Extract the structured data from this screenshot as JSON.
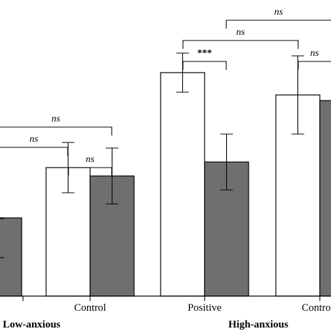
{
  "chart_data": {
    "type": "bar",
    "groups": [
      "Low-anxious",
      "High-anxious"
    ],
    "categories": [
      {
        "label": "",
        "group": "Low-anxious"
      },
      {
        "label": "Control",
        "group": "Low-anxious"
      },
      {
        "label": "Positive",
        "group": "High-anxious"
      },
      {
        "label": "Control",
        "group": "High-anxious"
      }
    ],
    "series": [
      {
        "color": "#ffffff",
        "values": [
          null,
          0.46,
          0.8,
          0.72
        ],
        "error": [
          null,
          0.09,
          0.07,
          0.14
        ]
      },
      {
        "color": "#6f6f6f",
        "values": [
          0.28,
          0.43,
          0.48,
          0.7
        ],
        "error": [
          null,
          0.1,
          0.1,
          null
        ]
      }
    ],
    "ylim": [
      0,
      1
    ],
    "grid": false,
    "legend": "none",
    "significance": [
      {
        "label": "ns",
        "from": "Low-anxious Control, white bar",
        "to": "Low-anxious Control, gray bar"
      },
      {
        "label": "ns",
        "from": "Low-anxious first condition",
        "to": "Low-anxious Control, white bar"
      },
      {
        "label": "ns",
        "from": "Low-anxious first condition",
        "to": "Low-anxious Control, gray bar"
      },
      {
        "label": "***",
        "from": "High-anxious Positive, white bar",
        "to": "High-anxious Positive, gray bar"
      },
      {
        "label": "ns",
        "from": "High-anxious Positive, white bar",
        "to": "High-anxious Control, white bar"
      },
      {
        "label": "ns",
        "from": "High-anxious Positive, gray bar",
        "to": "High-anxious Control"
      },
      {
        "label": "ns",
        "from": "High-anxious Control, white bar",
        "to": "High-anxious Control, gray bar"
      }
    ]
  }
}
